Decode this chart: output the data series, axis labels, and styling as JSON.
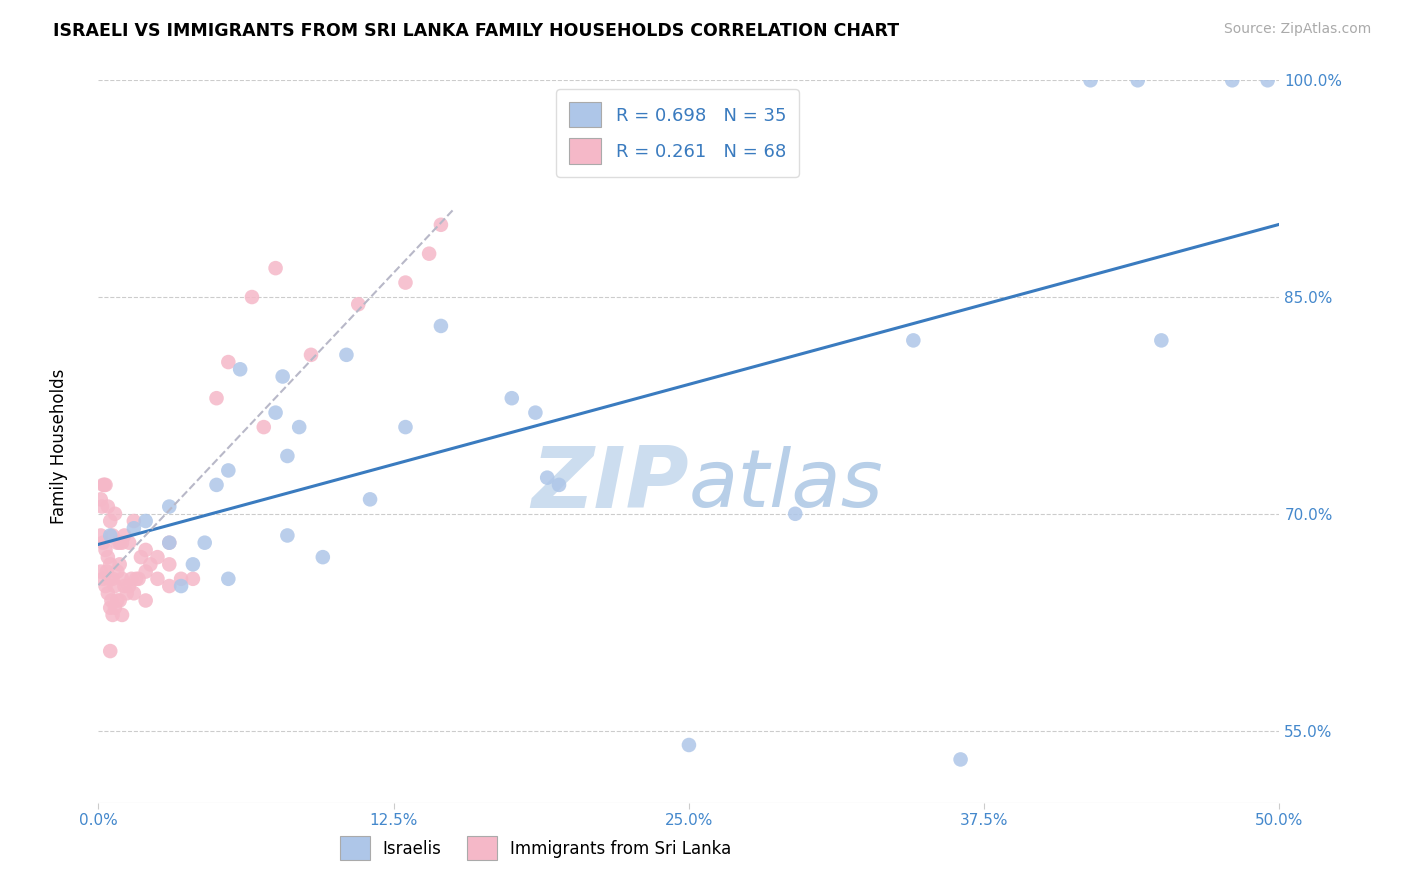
{
  "title": "ISRAELI VS IMMIGRANTS FROM SRI LANKA FAMILY HOUSEHOLDS CORRELATION CHART",
  "source": "Source: ZipAtlas.com",
  "ylabel": "Family Households",
  "xlim_pct": [
    0.0,
    50.0
  ],
  "ylim_pct": [
    50.0,
    100.0
  ],
  "xticks_pct": [
    0.0,
    12.5,
    25.0,
    37.5,
    50.0
  ],
  "yticks_pct": [
    55.0,
    70.0,
    85.0,
    100.0
  ],
  "blue_r": "0.698",
  "blue_n": "35",
  "pink_r": "0.261",
  "pink_n": "68",
  "blue_dot_color": "#aec6e8",
  "pink_dot_color": "#f5b8c8",
  "blue_line_color": "#3a7bbf",
  "pink_line_color": "#e07090",
  "watermark_zip": "ZIP",
  "watermark_atlas": "atlas",
  "watermark_color": "#ccddef",
  "axis_label_color": "#4488cc",
  "blue_x": [
    0.5,
    1.5,
    2.0,
    3.0,
    3.5,
    4.5,
    5.0,
    5.5,
    6.0,
    7.5,
    7.8,
    8.0,
    8.5,
    9.5,
    10.5,
    11.5,
    13.0,
    14.5,
    17.5,
    18.5,
    19.5,
    25.0,
    29.5,
    34.5,
    36.5,
    44.0,
    45.0,
    48.0,
    49.5,
    42.0,
    3.0,
    4.0,
    5.5,
    8.0,
    19.0
  ],
  "blue_y": [
    68.5,
    69.0,
    69.5,
    70.5,
    65.0,
    68.0,
    72.0,
    73.0,
    80.0,
    77.0,
    79.5,
    74.0,
    76.0,
    67.0,
    81.0,
    71.0,
    76.0,
    83.0,
    78.0,
    77.0,
    72.0,
    54.0,
    70.0,
    82.0,
    53.0,
    100.0,
    82.0,
    100.0,
    100.0,
    100.0,
    68.0,
    66.5,
    65.5,
    68.5,
    72.5
  ],
  "pink_x": [
    0.1,
    0.1,
    0.15,
    0.2,
    0.2,
    0.25,
    0.3,
    0.3,
    0.35,
    0.4,
    0.4,
    0.45,
    0.5,
    0.5,
    0.5,
    0.55,
    0.6,
    0.6,
    0.7,
    0.7,
    0.8,
    0.8,
    0.9,
    0.9,
    1.0,
    1.0,
    1.1,
    1.2,
    1.3,
    1.4,
    1.5,
    1.6,
    1.7,
    1.8,
    2.0,
    2.0,
    2.2,
    2.5,
    3.0,
    3.0,
    3.5,
    4.0,
    5.0,
    5.5,
    6.5,
    7.5,
    0.1,
    0.2,
    0.3,
    0.4,
    0.5,
    0.6,
    0.7,
    0.8,
    0.9,
    1.0,
    1.1,
    1.3,
    1.5,
    2.0,
    2.5,
    3.0,
    14.0,
    14.5,
    7.0,
    9.0,
    11.0,
    13.0
  ],
  "pink_y": [
    66.0,
    68.5,
    70.5,
    65.5,
    68.0,
    72.0,
    65.0,
    67.5,
    66.0,
    64.5,
    67.0,
    65.5,
    60.5,
    63.5,
    66.5,
    64.0,
    63.0,
    65.5,
    63.5,
    65.0,
    64.0,
    66.0,
    64.0,
    66.5,
    63.0,
    65.5,
    65.0,
    64.5,
    65.0,
    65.5,
    64.5,
    65.5,
    65.5,
    67.0,
    64.0,
    66.0,
    66.5,
    65.5,
    65.0,
    66.5,
    65.5,
    65.5,
    78.0,
    80.5,
    85.0,
    87.0,
    71.0,
    72.0,
    72.0,
    70.5,
    69.5,
    68.5,
    70.0,
    68.0,
    68.0,
    68.0,
    68.5,
    68.0,
    69.5,
    67.5,
    67.0,
    68.0,
    88.0,
    90.0,
    76.0,
    81.0,
    84.5,
    86.0
  ]
}
